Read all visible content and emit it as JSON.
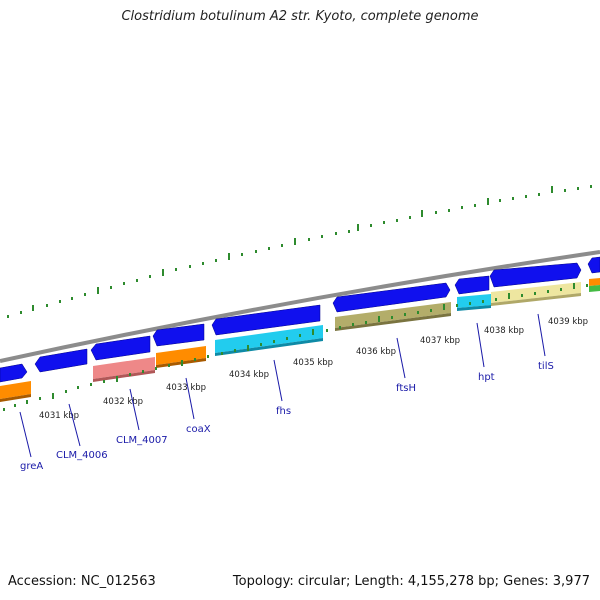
{
  "title": "Clostridium botulinum A2 str. Kyoto, complete genome",
  "footer": {
    "accession": "Accession: NC_012563",
    "stats": "Topology: circular; Length: 4,155,278 bp; Genes: 3,977"
  },
  "colors": {
    "backbone": "#8c8c8c",
    "cds": "#1010ee",
    "tick": "#2e8b2e",
    "label": "#1a1aa8",
    "orange": "#ff8c00",
    "pink": "#ee8888",
    "cyan": "#22ccee",
    "olive": "#b3ad6a",
    "khaki": "#eee6a0",
    "green": "#44bb44"
  },
  "kbp_labels": [
    "4031 kbp",
    "4032 kbp",
    "4033 kbp",
    "4034 kbp",
    "4035 kbp",
    "4036 kbp",
    "4037 kbp",
    "4038 kbp",
    "4039 kbp"
  ],
  "genes": [
    "greA",
    "CLM_4006",
    "CLM_4007",
    "coaX",
    "fhs",
    "ftsH",
    "hpt",
    "tilS"
  ]
}
